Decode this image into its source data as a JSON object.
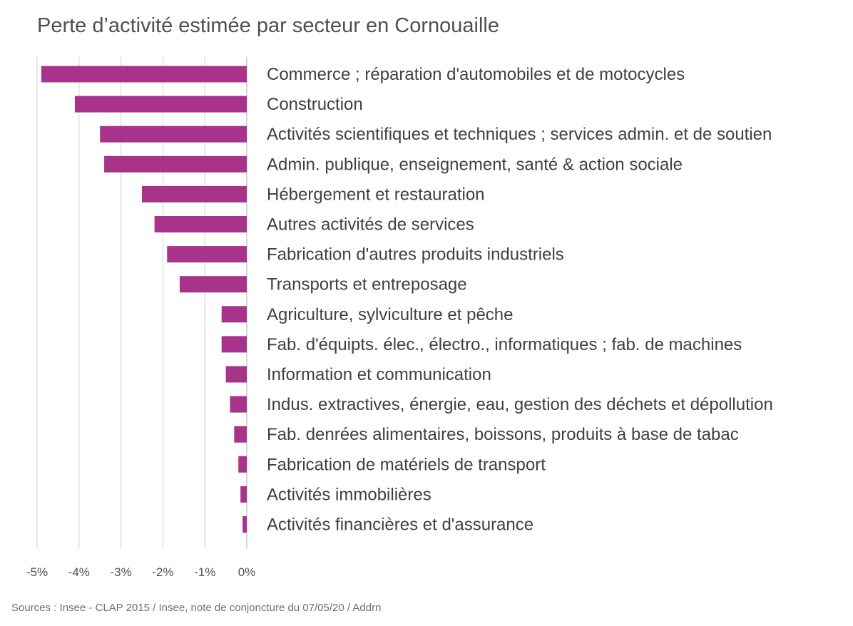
{
  "chart_data": {
    "type": "bar",
    "orientation": "horizontal",
    "title": "Perte d’activité estimée par secteur en Cornouaille",
    "source": "Sources : Insee - CLAP 2015 / Insee, note de conjoncture du 07/05/20 / Addrn",
    "xlim": [
      -5,
      0
    ],
    "x_ticks": [
      -5,
      -4,
      -3,
      -2,
      -1,
      0
    ],
    "x_tick_labels": [
      "-5%",
      "-4%",
      "-3%",
      "-2%",
      "-1%",
      "0%"
    ],
    "grid": true,
    "bar_color": "#a8338a",
    "categories": [
      "Commerce ; réparation d'automobiles et de motocycles",
      "Construction",
      "Activités scientifiques et techniques ; services admin. et de soutien",
      "Admin. publique, enseignement, santé & action sociale",
      "Hébergement et restauration",
      "Autres activités de services",
      "Fabrication d'autres produits industriels",
      "Transports et entreposage",
      "Agriculture, sylviculture et pêche",
      "Fab. d'équipts. élec., électro., informatiques ; fab. de machines",
      "Information et communication",
      "Indus. extractives, énergie, eau, gestion des déchets et dépollution",
      "Fab. denrées alimentaires, boissons, produits à base de tabac",
      "Fabrication de matériels de transport",
      "Activités immobilières",
      "Activités financières et d'assurance"
    ],
    "values": [
      -4.9,
      -4.1,
      -3.5,
      -3.4,
      -2.5,
      -2.2,
      -1.9,
      -1.6,
      -0.6,
      -0.6,
      -0.5,
      -0.4,
      -0.3,
      -0.2,
      -0.15,
      -0.1
    ]
  }
}
